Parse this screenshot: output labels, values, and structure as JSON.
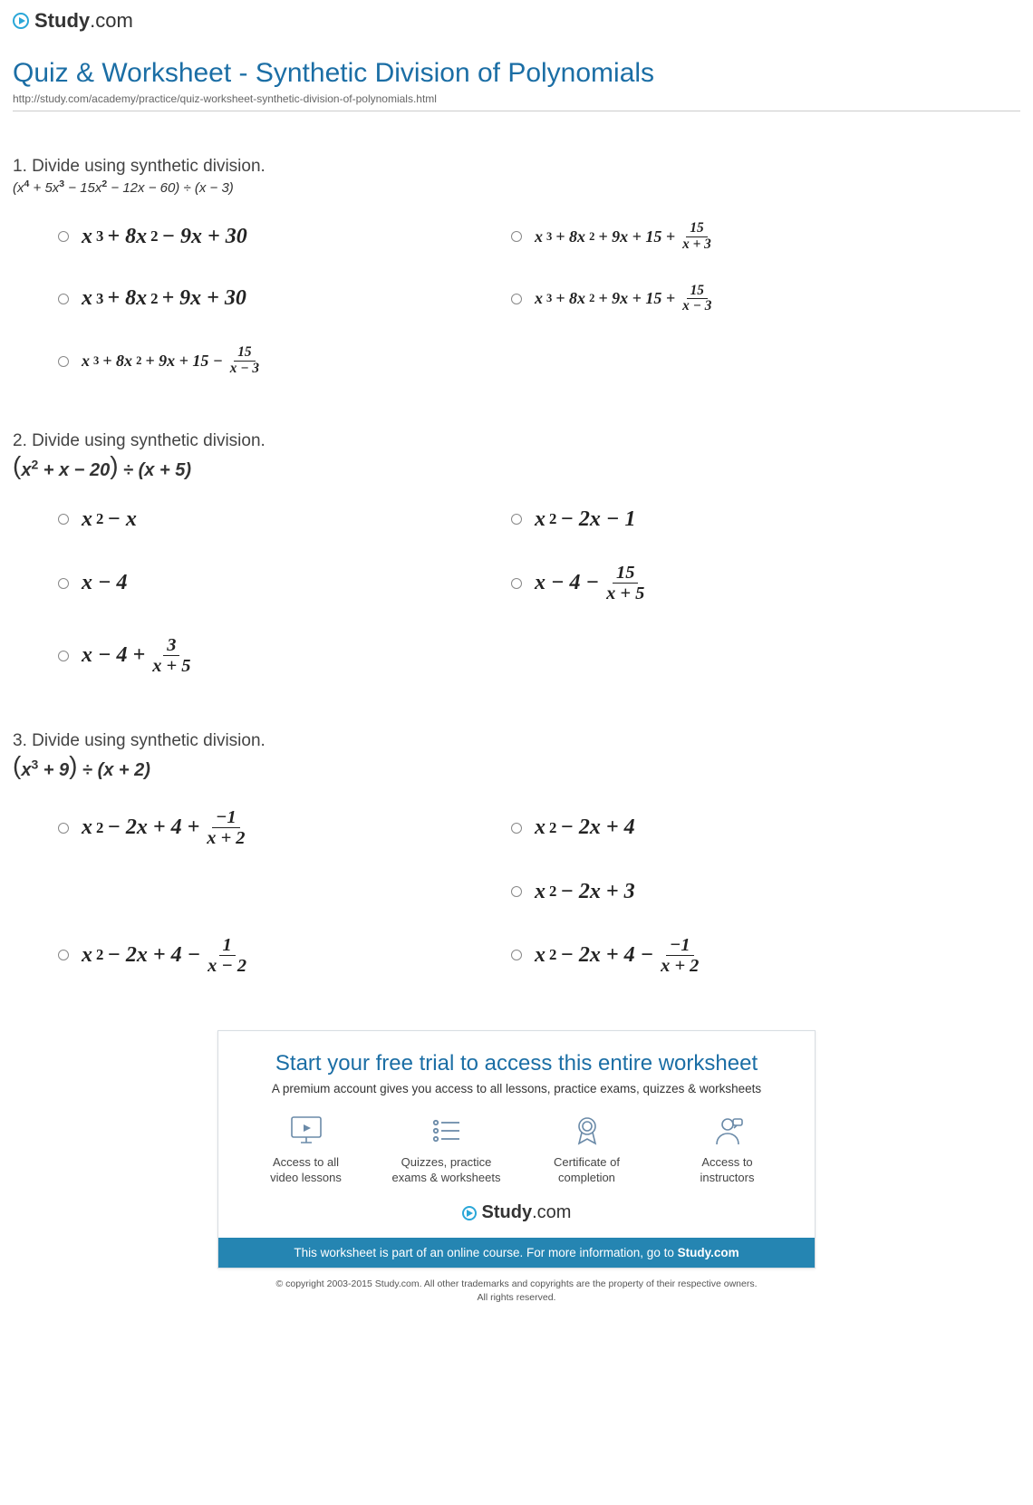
{
  "brand": {
    "name_bold": "Study",
    "name_rest": ".com"
  },
  "title": "Quiz & Worksheet - Synthetic Division of Polynomials",
  "url": "http://study.com/academy/practice/quiz-worksheet-synthetic-division-of-polynomials.html",
  "colors": {
    "heading": "#1b6ea5",
    "accent": "#2aa7d8",
    "bar": "#2585b2",
    "text": "#333333",
    "muted": "#666666",
    "border": "#d8dde2",
    "icon": "#6a8aa8"
  },
  "questions": [
    {
      "num": "1.",
      "prompt": "Divide using synthetic division.",
      "expr_html": "(x<sup>4</sup> + 5x<sup>3</sup> − 15x<sup>2</sup> − 12x − 60) ÷ (x − 3)",
      "expr_size": "sm",
      "options": [
        {
          "html": "x<sup>3</sup> + 8x<sup>2</sup> − 9x + 30",
          "size": "lg"
        },
        {
          "html": "x<sup>3</sup> + 8x<sup>2</sup> + 9x + 15 + <span class='frac'><span class='num'>15</span><span class='den'>x + 3</span></span>",
          "size": "sm"
        },
        {
          "html": "x<sup>3</sup> + 8x<sup>2</sup> + 9x + 30",
          "size": "lg"
        },
        {
          "html": "x<sup>3</sup> + 8x<sup>2</sup> + 9x + 15 + <span class='frac'><span class='num'>15</span><span class='den'>x − 3</span></span>",
          "size": "sm"
        },
        {
          "html": "x<sup>3</sup> + 8x<sup>2</sup> + 9x + 15 − <span class='frac'><span class='num'>15</span><span class='den'>x − 3</span></span>",
          "size": "sm",
          "span2": true
        }
      ]
    },
    {
      "num": "2.",
      "prompt": "Divide using synthetic division.",
      "expr_html": "<span class='bigparen-l'>(</span>x<sup>2</sup> + x − 20<span class='bigparen-r'>)</span> ÷ (x + 5)",
      "expr_size": "lg",
      "options": [
        {
          "html": "x<sup>2</sup> − x",
          "size": "lg"
        },
        {
          "html": "x<sup>2</sup> − 2x − 1",
          "size": "lg"
        },
        {
          "html": "x − 4",
          "size": "lg"
        },
        {
          "html": "x − 4 − <span class='frac'><span class='num'>15</span><span class='den'>x + 5</span></span>",
          "size": "lg"
        },
        {
          "html": "x − 4 + <span class='frac'><span class='num'>3</span><span class='den'>x + 5</span></span>",
          "size": "lg",
          "span2": true
        }
      ]
    },
    {
      "num": "3.",
      "prompt": "Divide using synthetic division.",
      "expr_html": "<span class='bigparen-l'>(</span>x<sup>3</sup> + 9<span class='bigparen-r'>)</span> ÷ (x + 2)",
      "expr_size": "lg",
      "options": [
        {
          "html": "x<sup>2</sup> − 2x + 4 + <span class='frac'><span class='num'>−1</span><span class='den'>x + 2</span></span>",
          "size": "lg"
        },
        {
          "html": "x<sup>2</sup> − 2x + 4",
          "size": "lg"
        },
        {
          "html": "",
          "size": "lg",
          "blank": true
        },
        {
          "html": "x<sup>2</sup> − 2x + 3",
          "size": "lg"
        },
        {
          "html": "x<sup>2</sup> − 2x + 4 − <span class='frac'><span class='num'>1</span><span class='den'>x − 2</span></span>",
          "size": "lg"
        },
        {
          "html": "x<sup>2</sup> − 2x + 4 − <span class='frac'><span class='num'>−1</span><span class='den'>x + 2</span></span>",
          "size": "lg"
        }
      ]
    }
  ],
  "promo": {
    "title": "Start your free trial to access this entire worksheet",
    "sub": "A premium account gives you access to all lessons, practice exams, quizzes & worksheets",
    "items": [
      {
        "icon": "monitor",
        "caption_l1": "Access to all",
        "caption_l2": "video lessons"
      },
      {
        "icon": "list",
        "caption_l1": "Quizzes, practice",
        "caption_l2": "exams & worksheets"
      },
      {
        "icon": "ribbon",
        "caption_l1": "Certificate of",
        "caption_l2": "completion"
      },
      {
        "icon": "person",
        "caption_l1": "Access to",
        "caption_l2": "instructors"
      }
    ],
    "bar_pre": "This worksheet is part of an online course. For more information, go to ",
    "bar_bold": "Study.com"
  },
  "copyright_l1": "© copyright 2003-2015 Study.com. All other trademarks and copyrights are the property of their respective owners.",
  "copyright_l2": "All rights reserved."
}
